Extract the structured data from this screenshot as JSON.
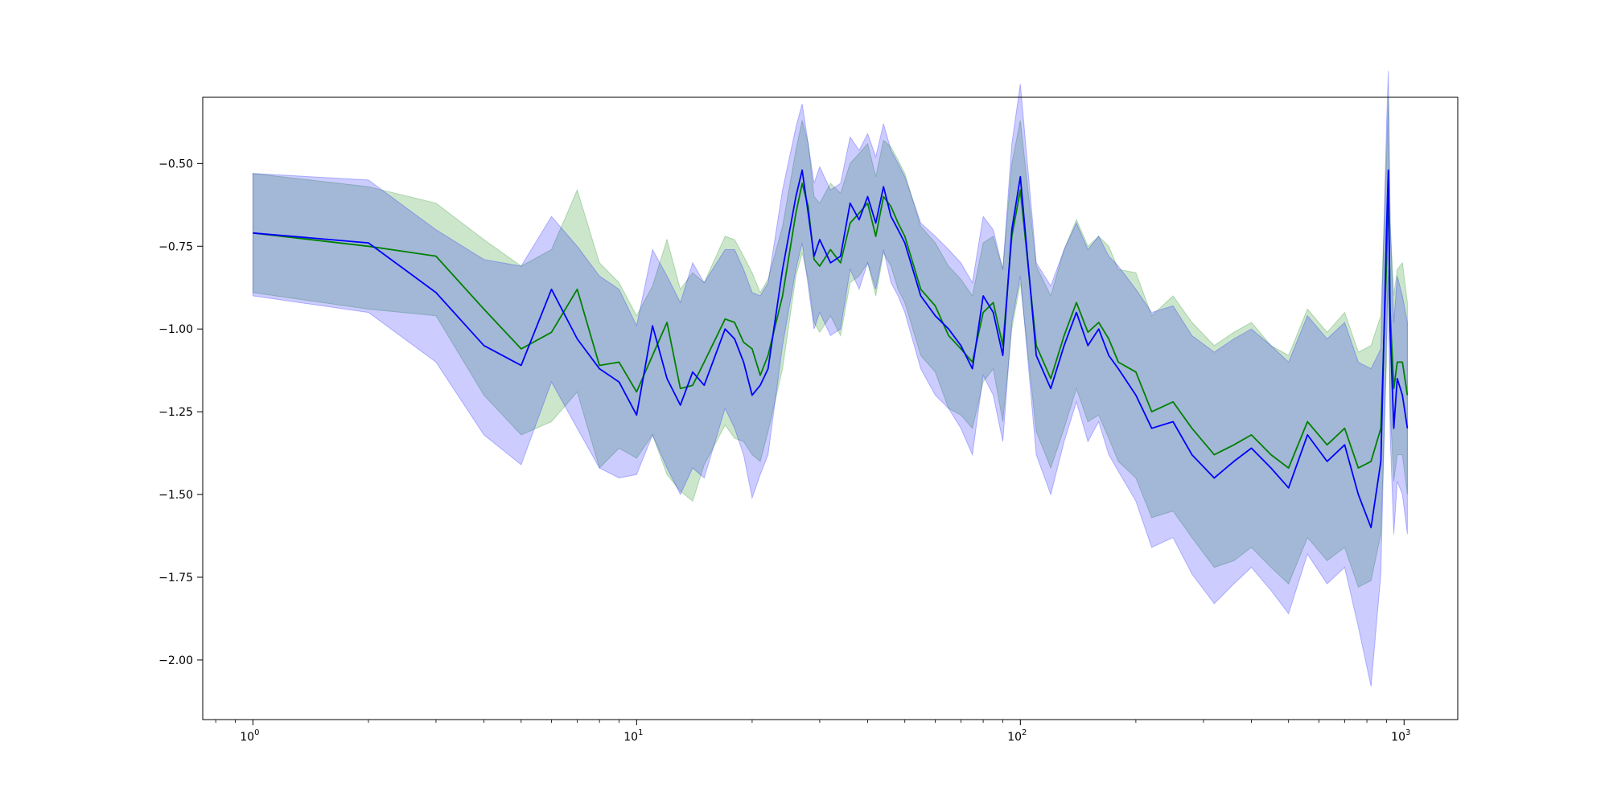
{
  "chart_data": {
    "type": "line",
    "title": "",
    "xlabel": "",
    "ylabel": "",
    "xscale": "log",
    "xlim": [
      0.74,
      1380
    ],
    "ylim": [
      -2.18,
      -0.3
    ],
    "grid": false,
    "legend": "none",
    "x_ticks": [
      {
        "value": 1,
        "base": "10",
        "exp": "0"
      },
      {
        "value": 10,
        "base": "10",
        "exp": "1"
      },
      {
        "value": 100,
        "base": "10",
        "exp": "2"
      },
      {
        "value": 1000,
        "base": "10",
        "exp": "3"
      }
    ],
    "y_ticks": [
      {
        "value": -0.5,
        "label": "−0.50"
      },
      {
        "value": -0.75,
        "label": "−0.75"
      },
      {
        "value": -1.0,
        "label": "−1.00"
      },
      {
        "value": -1.25,
        "label": "−1.25"
      },
      {
        "value": -1.5,
        "label": "−1.50"
      },
      {
        "value": -1.75,
        "label": "−1.75"
      },
      {
        "value": -2.0,
        "label": "−2.00"
      }
    ],
    "series": [
      {
        "color": "#008000",
        "band_color": "#008000",
        "band_opacity": 0.2,
        "line_width": 1.8,
        "x": [
          1,
          2,
          3,
          4,
          5,
          6,
          7,
          8,
          9,
          10,
          11,
          12,
          13,
          14,
          15,
          17,
          18,
          19,
          20,
          21,
          22,
          24,
          26,
          27,
          28,
          29,
          30,
          32,
          34,
          36,
          38,
          40,
          42,
          44,
          46,
          48,
          50,
          55,
          60,
          65,
          70,
          75,
          80,
          85,
          90,
          95,
          100,
          110,
          120,
          130,
          140,
          150,
          160,
          170,
          180,
          200,
          220,
          250,
          280,
          320,
          360,
          400,
          450,
          500,
          560,
          630,
          700,
          760,
          820,
          870,
          900,
          910,
          920,
          940,
          960,
          990,
          1020
        ],
        "y": [
          -0.71,
          -0.75,
          -0.78,
          -0.94,
          -1.06,
          -1.01,
          -0.88,
          -1.11,
          -1.1,
          -1.19,
          -1.08,
          -0.98,
          -1.18,
          -1.17,
          -1.1,
          -0.97,
          -0.98,
          -1.04,
          -1.06,
          -1.14,
          -1.08,
          -0.9,
          -0.65,
          -0.56,
          -0.63,
          -0.79,
          -0.81,
          -0.76,
          -0.8,
          -0.68,
          -0.65,
          -0.62,
          -0.72,
          -0.6,
          -0.63,
          -0.68,
          -0.72,
          -0.88,
          -0.93,
          -1.02,
          -1.06,
          -1.1,
          -0.95,
          -0.92,
          -1.05,
          -0.72,
          -0.58,
          -1.05,
          -1.15,
          -1.02,
          -0.92,
          -1.01,
          -0.98,
          -1.03,
          -1.1,
          -1.13,
          -1.25,
          -1.22,
          -1.3,
          -1.38,
          -1.35,
          -1.32,
          -1.38,
          -1.42,
          -1.28,
          -1.35,
          -1.3,
          -1.42,
          -1.4,
          -1.3,
          -0.8,
          -0.55,
          -0.95,
          -1.18,
          -1.1,
          -1.1,
          -1.2
        ],
        "y_low": [
          -0.89,
          -0.94,
          -0.96,
          -1.2,
          -1.32,
          -1.28,
          -1.19,
          -1.42,
          -1.36,
          -1.39,
          -1.32,
          -1.44,
          -1.49,
          -1.52,
          -1.41,
          -1.29,
          -1.33,
          -1.34,
          -1.38,
          -1.4,
          -1.31,
          -1.12,
          -0.84,
          -0.77,
          -0.85,
          -0.98,
          -1.01,
          -0.96,
          -1.02,
          -0.86,
          -0.84,
          -0.8,
          -0.9,
          -0.77,
          -0.81,
          -0.88,
          -0.92,
          -1.08,
          -1.13,
          -1.24,
          -1.26,
          -1.3,
          -1.16,
          -1.12,
          -1.28,
          -1.0,
          -0.86,
          -1.31,
          -1.42,
          -1.3,
          -1.18,
          -1.28,
          -1.26,
          -1.33,
          -1.4,
          -1.45,
          -1.57,
          -1.55,
          -1.63,
          -1.72,
          -1.7,
          -1.66,
          -1.72,
          -1.77,
          -1.63,
          -1.7,
          -1.66,
          -1.78,
          -1.76,
          -1.62,
          -1.1,
          -0.84,
          -1.24,
          -1.46,
          -1.38,
          -1.38,
          -1.5
        ],
        "y_high": [
          -0.53,
          -0.57,
          -0.62,
          -0.73,
          -0.81,
          -0.76,
          -0.58,
          -0.8,
          -0.86,
          -0.96,
          -0.87,
          -0.73,
          -0.88,
          -0.83,
          -0.86,
          -0.72,
          -0.73,
          -0.78,
          -0.83,
          -0.89,
          -0.85,
          -0.69,
          -0.46,
          -0.37,
          -0.44,
          -0.6,
          -0.62,
          -0.56,
          -0.59,
          -0.5,
          -0.47,
          -0.44,
          -0.54,
          -0.43,
          -0.45,
          -0.49,
          -0.53,
          -0.69,
          -0.74,
          -0.81,
          -0.85,
          -0.9,
          -0.74,
          -0.72,
          -0.82,
          -0.5,
          -0.37,
          -0.81,
          -0.9,
          -0.76,
          -0.67,
          -0.75,
          -0.72,
          -0.75,
          -0.82,
          -0.83,
          -0.96,
          -0.9,
          -0.98,
          -1.05,
          -1.01,
          -0.98,
          -1.05,
          -1.08,
          -0.94,
          -1.01,
          -0.95,
          -1.07,
          -1.05,
          -0.96,
          -0.48,
          -0.3,
          -0.68,
          -0.9,
          -0.82,
          -0.8,
          -0.92
        ]
      },
      {
        "color": "#0000ff",
        "band_color": "#0000ff",
        "band_opacity": 0.2,
        "line_width": 1.8,
        "x": [
          1,
          2,
          3,
          4,
          5,
          6,
          7,
          8,
          9,
          10,
          11,
          12,
          13,
          14,
          15,
          17,
          18,
          19,
          20,
          21,
          22,
          24,
          26,
          27,
          28,
          29,
          30,
          32,
          34,
          36,
          38,
          40,
          42,
          44,
          46,
          48,
          50,
          55,
          60,
          65,
          70,
          75,
          80,
          85,
          90,
          95,
          100,
          110,
          120,
          130,
          140,
          150,
          160,
          170,
          180,
          200,
          220,
          250,
          280,
          320,
          360,
          400,
          450,
          500,
          560,
          630,
          700,
          760,
          820,
          870,
          900,
          910,
          920,
          940,
          960,
          990,
          1020
        ],
        "y": [
          -0.71,
          -0.74,
          -0.89,
          -1.05,
          -1.11,
          -0.88,
          -1.03,
          -1.12,
          -1.16,
          -1.26,
          -0.99,
          -1.15,
          -1.23,
          -1.13,
          -1.17,
          -1.0,
          -1.03,
          -1.1,
          -1.2,
          -1.17,
          -1.12,
          -0.82,
          -0.6,
          -0.52,
          -0.65,
          -0.78,
          -0.73,
          -0.8,
          -0.78,
          -0.62,
          -0.67,
          -0.6,
          -0.68,
          -0.57,
          -0.66,
          -0.7,
          -0.74,
          -0.9,
          -0.96,
          -1.0,
          -1.05,
          -1.12,
          -0.9,
          -0.95,
          -1.08,
          -0.7,
          -0.54,
          -1.08,
          -1.18,
          -1.05,
          -0.95,
          -1.05,
          -1.0,
          -1.08,
          -1.12,
          -1.2,
          -1.3,
          -1.28,
          -1.38,
          -1.45,
          -1.4,
          -1.36,
          -1.42,
          -1.48,
          -1.32,
          -1.4,
          -1.35,
          -1.5,
          -1.6,
          -1.4,
          -0.7,
          -0.52,
          -1.0,
          -1.3,
          -1.15,
          -1.2,
          -1.3
        ],
        "y_low": [
          -0.9,
          -0.95,
          -1.1,
          -1.32,
          -1.41,
          -1.16,
          -1.3,
          -1.42,
          -1.45,
          -1.44,
          -1.32,
          -1.42,
          -1.5,
          -1.42,
          -1.45,
          -1.24,
          -1.3,
          -1.38,
          -1.51,
          -1.44,
          -1.38,
          -1.05,
          -0.82,
          -0.74,
          -0.87,
          -1.0,
          -0.95,
          -1.02,
          -1.0,
          -0.82,
          -0.88,
          -0.8,
          -0.88,
          -0.76,
          -0.86,
          -0.9,
          -0.95,
          -1.12,
          -1.2,
          -1.24,
          -1.3,
          -1.38,
          -1.14,
          -1.2,
          -1.34,
          -0.98,
          -0.84,
          -1.38,
          -1.5,
          -1.34,
          -1.22,
          -1.34,
          -1.28,
          -1.38,
          -1.43,
          -1.52,
          -1.66,
          -1.63,
          -1.74,
          -1.83,
          -1.77,
          -1.72,
          -1.79,
          -1.86,
          -1.68,
          -1.77,
          -1.72,
          -1.9,
          -2.08,
          -1.74,
          -1.02,
          -0.82,
          -1.32,
          -1.62,
          -1.46,
          -1.5,
          -1.62
        ],
        "y_high": [
          -0.53,
          -0.55,
          -0.7,
          -0.79,
          -0.81,
          -0.66,
          -0.75,
          -0.84,
          -0.88,
          -0.99,
          -0.76,
          -0.84,
          -0.92,
          -0.8,
          -0.86,
          -0.76,
          -0.76,
          -0.82,
          -0.89,
          -0.9,
          -0.86,
          -0.58,
          -0.39,
          -0.32,
          -0.44,
          -0.56,
          -0.51,
          -0.58,
          -0.56,
          -0.42,
          -0.46,
          -0.41,
          -0.48,
          -0.38,
          -0.46,
          -0.5,
          -0.54,
          -0.68,
          -0.72,
          -0.76,
          -0.8,
          -0.86,
          -0.66,
          -0.7,
          -0.82,
          -0.44,
          -0.26,
          -0.8,
          -0.87,
          -0.76,
          -0.68,
          -0.76,
          -0.72,
          -0.78,
          -0.81,
          -0.88,
          -0.95,
          -0.93,
          -1.02,
          -1.07,
          -1.03,
          -1.0,
          -1.05,
          -1.1,
          -0.96,
          -1.03,
          -0.98,
          -1.1,
          -1.12,
          -1.06,
          -0.38,
          -0.22,
          -0.68,
          -0.98,
          -0.84,
          -0.9,
          -0.98
        ]
      }
    ]
  }
}
